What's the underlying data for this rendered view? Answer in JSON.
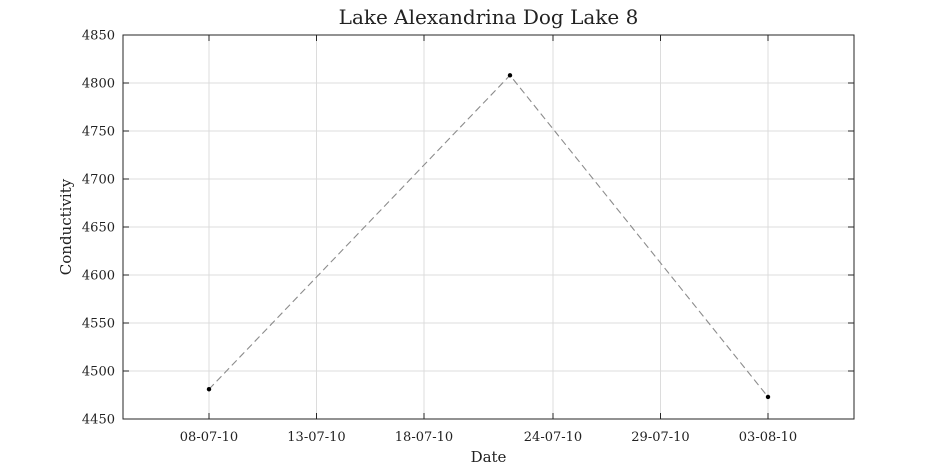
{
  "chart_data": {
    "type": "line",
    "title": "Lake Alexandrina Dog Lake 8",
    "xlabel": "Date",
    "ylabel": "Conductivity",
    "x_tick_labels": [
      "08-07-10",
      "13-07-10",
      "18-07-10",
      "24-07-10",
      "29-07-10",
      "03-08-10"
    ],
    "x_tick_dates": [
      "2010-07-08",
      "2010-07-13",
      "2010-07-18",
      "2010-07-24",
      "2010-07-29",
      "2010-08-03"
    ],
    "xlim": [
      "2010-07-04",
      "2010-08-07"
    ],
    "ylim": [
      4450,
      4850
    ],
    "y_ticks": [
      4450,
      4500,
      4550,
      4600,
      4650,
      4700,
      4750,
      4800,
      4850
    ],
    "grid": true,
    "series": [
      {
        "x": [
          "2010-07-08",
          "2010-07-22",
          "2010-08-03"
        ],
        "y": [
          4481,
          4808,
          4473
        ],
        "line_style": "dashed",
        "line_color": "#8c8c8c",
        "marker_color": "#000000"
      }
    ]
  }
}
